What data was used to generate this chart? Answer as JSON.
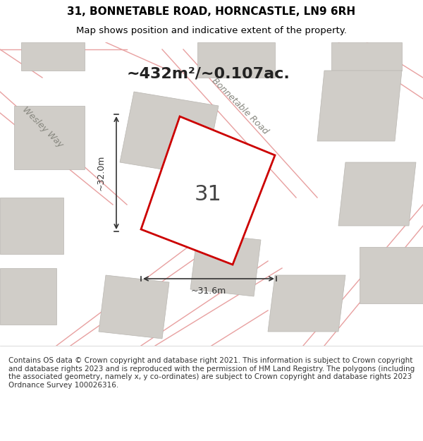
{
  "title_line1": "31, BONNETABLE ROAD, HORNCASTLE, LN9 6RH",
  "title_line2": "Map shows position and indicative extent of the property.",
  "area_text": "~432m²/~0.107ac.",
  "property_number": "31",
  "dim_vertical": "~32.0m",
  "dim_horizontal": "~31.6m",
  "road_label": "Bonnetable Road",
  "road_label2": "Wesley Way",
  "footer_text": "Contains OS data © Crown copyright and database right 2021. This information is subject to Crown copyright and database rights 2023 and is reproduced with the permission of HM Land Registry. The polygons (including the associated geometry, namely x, y co-ordinates) are subject to Crown copyright and database rights 2023 Ordnance Survey 100026316.",
  "bg_color": "#f5f5f0",
  "map_bg": "#f0ede8",
  "footer_bg": "#ffffff",
  "building_color": "#d0cdc8",
  "building_edge": "#b8b5b0",
  "road_line_color": "#e8a0a0",
  "property_outline_color": "#cc0000",
  "property_fill": "#ffffff",
  "dim_color": "#333333",
  "title_color": "#000000",
  "road_label_color": "#888880",
  "footer_color": "#333333"
}
